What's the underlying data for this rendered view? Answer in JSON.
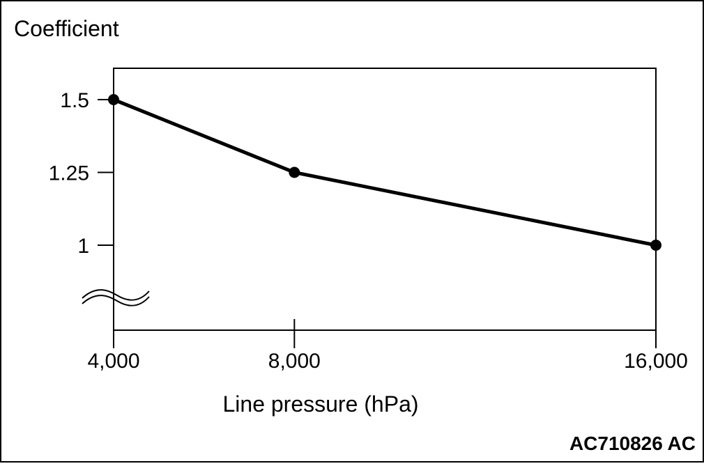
{
  "figure_id": "AC710826 AC",
  "chart_data": {
    "type": "line",
    "ylabel": "Coefficient",
    "xlabel": "Line pressure (hPa)",
    "x_ticks": [
      {
        "value": 4000,
        "label": "4,000"
      },
      {
        "value": 8000,
        "label": "8,000"
      },
      {
        "value": 16000,
        "label": "16,000"
      }
    ],
    "y_ticks": [
      {
        "value": 1.5,
        "label": "1.5"
      },
      {
        "value": 1.25,
        "label": "1.25"
      },
      {
        "value": 1,
        "label": "1"
      }
    ],
    "xlim": [
      4000,
      16000
    ],
    "y_axis_break": true,
    "grid": false,
    "points": [
      {
        "x": 4000,
        "y": 1.5
      },
      {
        "x": 8000,
        "y": 1.25
      },
      {
        "x": 16000,
        "y": 1.0
      }
    ],
    "colors": {
      "line": "#000000",
      "marker": "#000000",
      "frame": "#000000"
    }
  }
}
